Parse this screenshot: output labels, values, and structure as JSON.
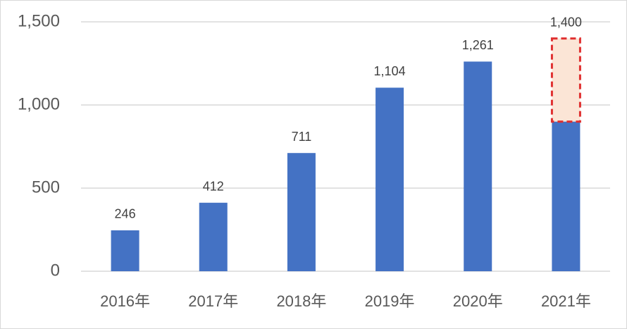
{
  "chart_data": {
    "type": "bar",
    "categories": [
      "2016年",
      "2017年",
      "2018年",
      "2019年",
      "2020年",
      "2021年"
    ],
    "values": [
      246,
      412,
      711,
      1104,
      1261,
      900
    ],
    "value_labels": [
      "246",
      "412",
      "711",
      "1,104",
      "1,261",
      null
    ],
    "projected_values": [
      null,
      null,
      null,
      null,
      null,
      1400
    ],
    "projected_value_labels": [
      null,
      null,
      null,
      null,
      null,
      "1,400"
    ],
    "color": "#4472c4",
    "projected_fill": "#fbe5d6",
    "projected_stroke": "#e03030",
    "ylim": [
      0,
      1500
    ],
    "yticks": [
      0,
      500,
      {
        "value": 1000,
        "label": "1,000"
      },
      {
        "value": 1500,
        "label": "1,500"
      }
    ],
    "grid": true
  }
}
